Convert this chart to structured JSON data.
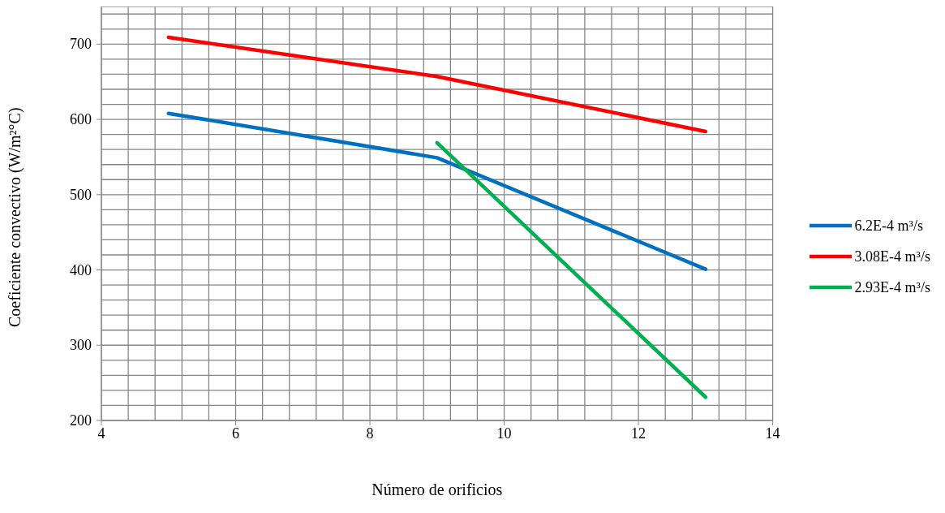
{
  "chart_data": {
    "type": "line",
    "xlabel": "Número de orificios",
    "ylabel": "Coeficiente convectivo (W/m²°C)",
    "x": [
      5,
      9,
      13
    ],
    "series": [
      {
        "name": "6.2E-4 m³/s",
        "color": "#0070c0",
        "values": [
          608,
          549,
          401
        ]
      },
      {
        "name": "3.08E-4 m³/s",
        "color": "#ff0000",
        "values": [
          709,
          657,
          584
        ]
      },
      {
        "name": "2.93E-4 m³/s",
        "color": "#00b050",
        "values": [
          null,
          569,
          231
        ]
      }
    ],
    "xlim": [
      4,
      14
    ],
    "xticks": [
      4,
      {
        "value": 4.4,
        "label": null
      },
      {
        "value": 4.8,
        "label": null
      },
      {
        "value": 5.2,
        "label": null
      },
      {
        "value": 5.6,
        "label": null
      },
      6,
      {
        "value": 6.4,
        "label": null
      },
      {
        "value": 6.8,
        "label": null
      },
      {
        "value": 7.2,
        "label": null
      },
      {
        "value": 7.6,
        "label": null
      },
      8,
      {
        "value": 8.4,
        "label": null
      },
      {
        "value": 8.8,
        "label": null
      },
      {
        "value": 9.2,
        "label": null
      },
      {
        "value": 9.6,
        "label": null
      },
      10,
      {
        "value": 10.4,
        "label": null
      },
      {
        "value": 10.8,
        "label": null
      },
      {
        "value": 11.2,
        "label": null
      },
      {
        "value": 11.6,
        "label": null
      },
      12,
      {
        "value": 12.4,
        "label": null
      },
      {
        "value": 12.8,
        "label": null
      },
      {
        "value": 13.2,
        "label": null
      },
      {
        "value": 13.6,
        "label": null
      },
      14
    ],
    "ylim": [
      200,
      750
    ],
    "yticks": [
      200,
      {
        "value": 220,
        "label": null
      },
      {
        "value": 240,
        "label": null
      },
      {
        "value": 260,
        "label": null
      },
      {
        "value": 280,
        "label": null
      },
      300,
      {
        "value": 320,
        "label": null
      },
      {
        "value": 340,
        "label": null
      },
      {
        "value": 360,
        "label": null
      },
      {
        "value": 380,
        "label": null
      },
      400,
      {
        "value": 420,
        "label": null
      },
      {
        "value": 440,
        "label": null
      },
      {
        "value": 460,
        "label": null
      },
      {
        "value": 480,
        "label": null
      },
      500,
      {
        "value": 520,
        "label": null
      },
      {
        "value": 540,
        "label": null
      },
      {
        "value": 560,
        "label": null
      },
      {
        "value": 580,
        "label": null
      },
      600,
      {
        "value": 620,
        "label": null
      },
      {
        "value": 640,
        "label": null
      },
      {
        "value": 660,
        "label": null
      },
      {
        "value": 680,
        "label": null
      },
      700,
      {
        "value": 720,
        "label": null
      },
      {
        "value": 740,
        "label": null
      },
      {
        "value": 750,
        "label": null
      }
    ],
    "grid": true,
    "legend": "right",
    "marker": "none",
    "line_style": "solid"
  }
}
